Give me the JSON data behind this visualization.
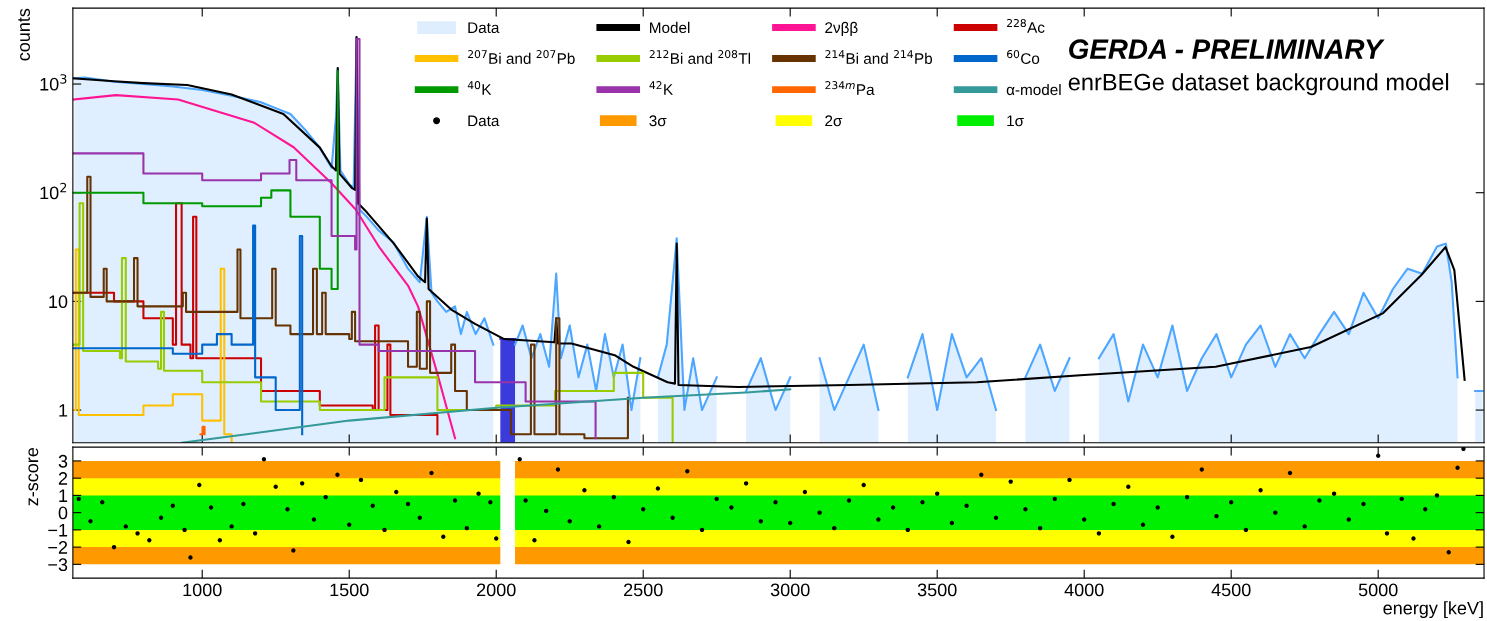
{
  "chart_data": [
    {
      "type": "step",
      "ylabel": "counts",
      "log": "y",
      "xlim": [
        560,
        5360
      ],
      "ylim": [
        0.5,
        5000
      ],
      "xticks": [
        1000,
        1500,
        2000,
        2500,
        3000,
        3500,
        4000,
        4500,
        5000
      ],
      "yticks": [
        1,
        10,
        {
          "value": 100,
          "label": "10$^{2}$"
        },
        {
          "value": 1000,
          "label": "10$^{3}$"
        }
      ],
      "tick_labels": "y",
      "legend": "top",
      "grid": false,
      "annotations": [
        "GERDA - PRELIMINARY",
        "enrBEGe dataset background model"
      ],
      "series": [
        {
          "name": "Data",
          "type": "area",
          "color": "#4da6ff",
          "x": [
            565,
            600,
            650,
            700,
            800,
            900,
            1000,
            1100,
            1200,
            1250,
            1300,
            1350,
            1400,
            1440,
            1455,
            1461,
            1470,
            1500,
            1515,
            1525,
            1535,
            1560,
            1600,
            1650,
            1700,
            1740,
            1764,
            1780,
            1800,
            1830,
            1860,
            1880,
            1900,
            1930,
            1960,
            1990,
            2014,
            2064,
            2090,
            2120,
            2150,
            2180,
            2204,
            2220,
            2250,
            2280,
            2310,
            2340,
            2370,
            2400,
            2430,
            2460,
            2490,
            2520,
            2550,
            2580,
            2614,
            2640,
            2670,
            2700,
            2750,
            2800,
            2850,
            2900,
            2950,
            3000,
            3050,
            3100,
            3150,
            3200,
            3250,
            3300,
            3350,
            3400,
            3450,
            3500,
            3550,
            3600,
            3650,
            3700,
            3750,
            3800,
            3850,
            3900,
            3950,
            4000,
            4050,
            4100,
            4150,
            4200,
            4250,
            4300,
            4350,
            4400,
            4450,
            4500,
            4550,
            4600,
            4650,
            4700,
            4750,
            4800,
            4850,
            4900,
            4950,
            5000,
            5050,
            5100,
            5150,
            5200,
            5230,
            5250,
            5270,
            5290,
            5330,
            5355
          ],
          "values": [
            1130,
            1150,
            1100,
            1050,
            1000,
            950,
            880,
            780,
            680,
            600,
            530,
            380,
            260,
            170,
            500,
            1400,
            160,
            120,
            110,
            2700,
            70,
            60,
            45,
            35,
            20,
            15,
            60,
            12,
            10,
            8,
            9,
            5,
            8,
            5,
            7,
            4,
            null,
            4,
            6,
            3,
            5,
            2.5,
            18,
            3,
            6,
            2,
            4,
            1.5,
            5,
            2,
            4,
            1,
            3,
            null,
            2,
            4,
            38,
            1,
            3,
            1,
            2,
            null,
            1.5,
            3,
            1,
            2,
            null,
            3,
            1,
            2,
            4,
            1,
            null,
            2,
            5,
            1,
            5,
            2,
            3,
            1,
            null,
            2,
            4,
            1.5,
            3,
            null,
            3,
            5,
            1.2,
            4,
            2,
            6,
            1.5,
            3,
            5,
            2,
            4,
            6,
            2.5,
            5,
            3,
            5,
            8,
            5,
            12,
            7,
            13,
            20,
            18,
            32,
            34,
            15,
            2,
            null,
            1.5,
            1.5
          ]
        },
        {
          "name": "Model",
          "type": "line",
          "color": "#000000",
          "x": [
            560,
            700,
            800,
            949,
            1100,
            1276,
            1400,
            1440,
            1455,
            1461,
            1467,
            1510,
            1520,
            1525,
            1530,
            1560,
            1652,
            1734,
            1758,
            1764,
            1770,
            1850,
            1928,
            2027,
            2198,
            2204,
            2210,
            2256,
            2403,
            2467,
            2583,
            2608,
            2614,
            2620,
            2823,
            3200,
            3635,
            4000,
            4447,
            4771,
            5017,
            5147,
            5229,
            5259,
            5294
          ],
          "values": [
            1130,
            1060,
            1020,
            980,
            800,
            530,
            260,
            175,
            160,
            1400,
            150,
            110,
            106,
            2700,
            80,
            66,
            34,
            17,
            15,
            58,
            13,
            8.3,
            6.2,
            4.5,
            4.2,
            7,
            4.1,
            4.1,
            3.2,
            2.5,
            1.8,
            1.75,
            34,
            1.7,
            1.63,
            1.7,
            1.8,
            2.1,
            2.5,
            3.8,
            7.8,
            17.5,
            31.6,
            19.4,
            1.9
          ]
        },
        {
          "name": "2νββ",
          "type": "line",
          "color": "#ff1493",
          "x": [
            560,
            707,
            918,
            1177,
            1311,
            1440,
            1522,
            1604,
            1700,
            1734,
            1799,
            1860
          ],
          "values": [
            720,
            790,
            720,
            440,
            262,
            122,
            70,
            31,
            14,
            9,
            2.2,
            0.55
          ]
        },
        {
          "name": "$^{228}$Ac",
          "color": "#cc0000",
          "x": [
            560,
            700,
            800,
            900,
            911,
            930,
            960,
            969,
            980,
            1000,
            1200,
            1400,
            1580,
            1588,
            1600,
            1630,
            1640,
            1800
          ],
          "values": [
            12,
            10,
            7,
            4,
            80,
            4,
            3,
            60,
            3,
            3,
            1.5,
            1.1,
            1,
            6,
            1,
            4,
            0.9,
            0.6
          ]
        },
        {
          "name": "$^{207}$Bi and $^{207}$Pb",
          "color": "#ffc000",
          "x": [
            560,
            570,
            580,
            800,
            900,
            1000,
            1063,
            1075,
            1100
          ],
          "values": [
            1,
            30,
            0.9,
            1.1,
            1.4,
            0.8,
            20,
            0.6,
            0.5
          ]
        },
        {
          "name": "$^{212}$Bi and $^{208}$Tl",
          "color": "#99cc00",
          "x": [
            560,
            583,
            595,
            720,
            727,
            740,
            850,
            860,
            870,
            1000,
            1200,
            1400,
            1620,
            1800,
            2000,
            2200,
            2400,
            2500,
            2600
          ],
          "values": [
            4,
            80,
            3.5,
            3,
            25,
            2.8,
            2.4,
            8,
            2.3,
            1.8,
            1.2,
            1.0,
            2,
            1,
            1.1,
            1.5,
            2.2,
            1.3,
            0.5
          ]
        },
        {
          "name": "$^{214}$Bi and $^{214}$Pb",
          "color": "#663300",
          "x": [
            560,
            609,
            620,
            665,
            675,
            768,
            780,
            934,
            945,
            1000,
            1120,
            1130,
            1238,
            1250,
            1300,
            1377,
            1390,
            1408,
            1420,
            1500,
            1509,
            1520,
            1700,
            1730,
            1740,
            1764,
            1775,
            1847,
            1860,
            1900,
            2050,
            2118,
            2130,
            2204,
            2215,
            2300,
            2448
          ],
          "values": [
            12,
            140,
            11,
            20,
            10,
            25,
            9,
            12,
            8,
            8,
            30,
            7,
            20,
            6,
            5,
            20,
            5,
            12,
            5,
            4.5,
            8,
            4.3,
            2.5,
            8,
            2.4,
            10,
            2.2,
            4,
            1.5,
            1,
            0.6,
            4,
            0.6,
            7,
            0.6,
            0.55,
            1.3
          ]
        },
        {
          "name": "$^{60}$Co",
          "color": "#0066cc",
          "x": [
            560,
            900,
            1000,
            1050,
            1100,
            1173,
            1180,
            1250,
            1332,
            1340
          ],
          "values": [
            3.7,
            3.3,
            4,
            5,
            4,
            50,
            2,
            1,
            40,
            0.6
          ]
        },
        {
          "name": "$^{40}$K",
          "color": "#009900",
          "x": [
            560,
            800,
            1000,
            1200,
            1235,
            1300,
            1400,
            1440,
            1461
          ],
          "values": [
            100,
            80,
            75,
            90,
            105,
            60,
            20,
            13,
            1300
          ]
        },
        {
          "name": "$^{42}$K",
          "color": "#9933aa",
          "x": [
            560,
            800,
            1000,
            1200,
            1297,
            1320,
            1440,
            1520,
            1525,
            1535,
            1600,
            1928,
            2100,
            2338
          ],
          "values": [
            230,
            150,
            130,
            150,
            200,
            130,
            40,
            30,
            2600,
            4,
            3.5,
            1.8,
            1.2,
            0.55
          ]
        },
        {
          "name": "$^{234m}$Pa",
          "color": "#ff6600",
          "x": [
            994,
            1001,
            1008
          ],
          "values": [
            0.6,
            0.7,
            0.6
          ]
        },
        {
          "name": "α-model",
          "type": "line",
          "color": "#339999",
          "x": [
            930,
            1500,
            2000,
            2500,
            2850,
            3000
          ],
          "values": [
            0.5,
            0.8,
            1.05,
            1.3,
            1.45,
            1.55
          ]
        },
        {
          "type": "area",
          "color": "#3b3bdb",
          "x": [
            2014,
            2064
          ],
          "values": [
            4.5,
            4.5
          ]
        }
      ]
    },
    {
      "type": "scatter",
      "xlabel": "energy [keV]",
      "ylabel": "z-score",
      "xlim": [
        560,
        5360
      ],
      "ylim": [
        -3.8,
        3.8
      ],
      "xticks": [
        1000,
        1500,
        2000,
        2500,
        3000,
        3500,
        4000,
        4500,
        5000
      ],
      "yticks": [
        {
          "value": -3,
          "label": "−3"
        },
        {
          "value": -2,
          "label": "−2"
        },
        {
          "value": -1,
          "label": "−1"
        },
        0,
        1,
        2,
        3
      ],
      "legend": "top",
      "grid": false,
      "marker": "circle",
      "bands": [
        {
          "axis": "y",
          "from": -3,
          "to": 3,
          "color": "#ff9900",
          "label": "3σ"
        },
        {
          "axis": "y",
          "from": -2,
          "to": 2,
          "color": "#ffff00",
          "label": "2σ"
        },
        {
          "axis": "y",
          "from": -1,
          "to": 1,
          "color": "#00ee00",
          "label": "1σ"
        },
        {
          "axis": "x",
          "from": 2014,
          "to": 2064,
          "color": "#ffffff"
        }
      ],
      "series": [
        {
          "name": "Data",
          "color": "#000000",
          "x": [
            580,
            620,
            660,
            700,
            740,
            780,
            820,
            860,
            900,
            940,
            960,
            990,
            1030,
            1060,
            1100,
            1140,
            1180,
            1210,
            1250,
            1290,
            1310,
            1340,
            1380,
            1420,
            1460,
            1500,
            1540,
            1580,
            1620,
            1660,
            1700,
            1740,
            1780,
            1820,
            1860,
            1900,
            1940,
            1980,
            2000,
            2080,
            2100,
            2130,
            2170,
            2210,
            2250,
            2300,
            2350,
            2400,
            2450,
            2500,
            2550,
            2600,
            2650,
            2700,
            2750,
            2800,
            2850,
            2900,
            2950,
            3000,
            3050,
            3100,
            3150,
            3200,
            3250,
            3300,
            3350,
            3400,
            3450,
            3500,
            3550,
            3600,
            3650,
            3700,
            3750,
            3800,
            3850,
            3900,
            3950,
            4000,
            4050,
            4100,
            4150,
            4200,
            4250,
            4300,
            4350,
            4400,
            4450,
            4500,
            4550,
            4600,
            4650,
            4700,
            4750,
            4800,
            4850,
            4900,
            4950,
            5000,
            5030,
            5080,
            5120,
            5160,
            5200,
            5240,
            5270,
            5290
          ],
          "values": [
            0.8,
            -0.5,
            0.6,
            -2.0,
            -0.8,
            -1.2,
            -1.6,
            -0.3,
            0.4,
            -1.0,
            -2.6,
            1.6,
            0.3,
            -1.6,
            -0.8,
            0.5,
            -1.2,
            3.1,
            1.5,
            0.2,
            -2.2,
            1.7,
            -0.4,
            0.9,
            2.2,
            -0.7,
            1.9,
            0.4,
            -1.0,
            1.2,
            0.5,
            -0.3,
            2.3,
            -1.4,
            0.7,
            -0.9,
            1.1,
            0.6,
            -1.5,
            3.1,
            0.7,
            -1.6,
            0.1,
            2.5,
            -0.5,
            1.3,
            -0.8,
            0.9,
            -1.7,
            0.2,
            1.4,
            -0.3,
            2.4,
            -1.0,
            0.8,
            0.3,
            1.7,
            -0.5,
            0.6,
            -0.6,
            1.2,
            0.0,
            -0.9,
            0.7,
            1.6,
            -0.4,
            0.3,
            -1.0,
            0.6,
            1.1,
            -0.6,
            0.4,
            2.2,
            -0.3,
            1.8,
            0.2,
            -0.9,
            0.8,
            1.9,
            -0.4,
            -1.2,
            0.5,
            1.5,
            -0.7,
            0.3,
            -1.4,
            0.9,
            2.5,
            -0.2,
            0.6,
            -1.0,
            1.3,
            0.0,
            2.3,
            -0.8,
            0.7,
            1.1,
            -0.4,
            0.5,
            3.3,
            -1.2,
            0.8,
            -1.5,
            0.2,
            1.0,
            -2.3,
            2.6,
            3.7
          ]
        }
      ]
    }
  ]
}
